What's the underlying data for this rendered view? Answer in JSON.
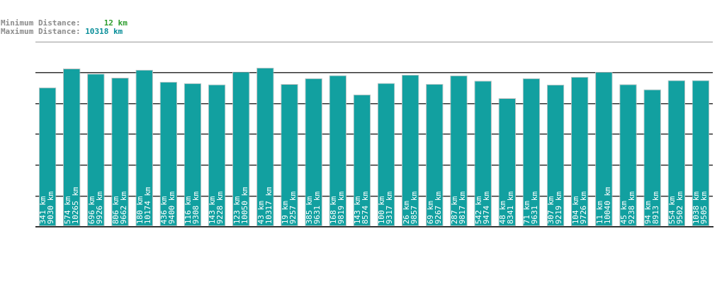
{
  "chart_data": {
    "type": "bar",
    "categories": [
      null,
      null,
      null,
      null,
      null,
      null,
      null,
      null,
      null,
      null,
      null,
      null,
      null,
      null,
      null,
      null,
      null,
      null,
      null,
      null,
      null,
      null,
      null,
      null,
      null,
      null,
      null,
      null
    ],
    "values": [
      9030,
      10265,
      9926,
      9662,
      10174,
      9400,
      9308,
      9228,
      10050,
      10317,
      9257,
      9631,
      9819,
      8574,
      9317,
      9857,
      9267,
      9817,
      9474,
      8341,
      9631,
      9219,
      9726,
      10040,
      9238,
      8913,
      9502,
      9505
    ],
    "value_labels": [
      "341 km\n9030 km",
      "574 km\n10265 km",
      "696 km\n9926 km",
      "806 km\n9662 km",
      "180 km\n10174 km",
      "436 km\n9400 km",
      "116 km\n9308 km",
      "143 km\n9228 km",
      "123 km\n10050 km",
      "43 km\n10317 km",
      "19 km\n9257 km",
      "385 km\n9631 km",
      "168 km\n9819 km",
      "143 km\n8574 km",
      "100 km\n9317 km",
      "26 km\n9857 km",
      "69 km\n9267 km",
      "287 km\n9817 km",
      "542 km\n9474 km",
      "48 km\n8341 km",
      "71 km\n9631 km",
      "307 km\n9219 km",
      "104 km\n9726 km",
      "11 km\n10040 km",
      "45 km\n9238 km",
      "94 km\n8913 km",
      "554 km\n9502 km",
      "1038 km\n9505 km"
    ],
    "color": "#12a0a0",
    "grid": "y",
    "tick_labels": false,
    "annotations": [
      "Minimum Distance:     12 km",
      "Maximum Distance: 10318 km"
    ]
  }
}
